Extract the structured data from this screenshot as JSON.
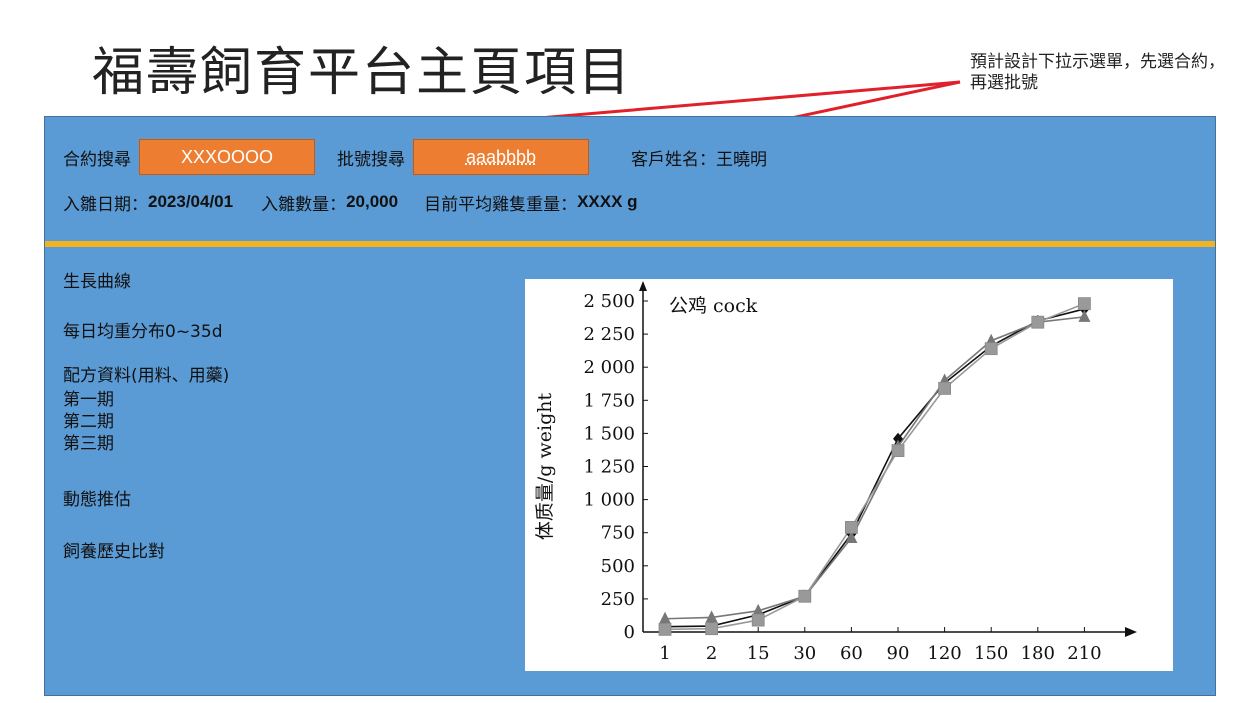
{
  "page_title": "福壽飼育平台主頁項目",
  "design_note": "預計設計下拉示選單，先選合約，再選批號",
  "search": {
    "contract_label": "合約搜尋",
    "contract_value": "XXXOOOO",
    "batch_label": "批號搜尋",
    "batch_value": "aaabbbb",
    "customer_label": "客戶姓名：",
    "customer_value": "王曉明"
  },
  "batch_info": {
    "entry_date_label": "入雛日期：",
    "entry_date_value": "2023/04/01",
    "entry_count_label": "入雛數量：",
    "entry_count_value": "20,000",
    "avg_weight_label": "目前平均雞隻重量：",
    "avg_weight_value": "XXXX g"
  },
  "menu": {
    "growth_curve": "生長曲線",
    "daily_weight": "每日均重分布0~35d",
    "formula": "配方資料(用料、用藥)",
    "phase1": "第一期",
    "phase2": "第二期",
    "phase3": "第三期",
    "dynamic_estimate": "動態推估",
    "history_compare": "飼養歷史比對"
  },
  "colors": {
    "panel": "#5b9bd5",
    "divider": "#f0b323",
    "field": "#ed7d31",
    "arrow": "#e0202a"
  },
  "chart_data": {
    "type": "line",
    "annotation": "公鸡 cock",
    "ylabel": "体质量/g weight",
    "xlabel": "",
    "categories": [
      "1",
      "2",
      "15",
      "30",
      "60",
      "90",
      "120",
      "150",
      "180",
      "210"
    ],
    "ylim": [
      0,
      2500
    ],
    "yticks": [
      0,
      250,
      500,
      750,
      1000,
      1250,
      1500,
      1750,
      2000,
      2250,
      2500
    ],
    "ytick_labels": [
      "0",
      "250",
      "500",
      "750",
      "1 000",
      "1 250",
      "1 500",
      "1 750",
      "2 000",
      "2 250",
      "2 500"
    ],
    "series": [
      {
        "marker": "diamond",
        "color": "#111111",
        "values": [
          40,
          45,
          130,
          270,
          740,
          1460,
          1880,
          2160,
          2350,
          2440
        ]
      },
      {
        "marker": "triangle",
        "color": "#777777",
        "values": [
          100,
          110,
          160,
          270,
          710,
          1400,
          1900,
          2200,
          2340,
          2380
        ]
      },
      {
        "marker": "square",
        "color": "#999999",
        "values": [
          20,
          25,
          90,
          270,
          790,
          1370,
          1840,
          2140,
          2340,
          2480
        ]
      }
    ]
  }
}
